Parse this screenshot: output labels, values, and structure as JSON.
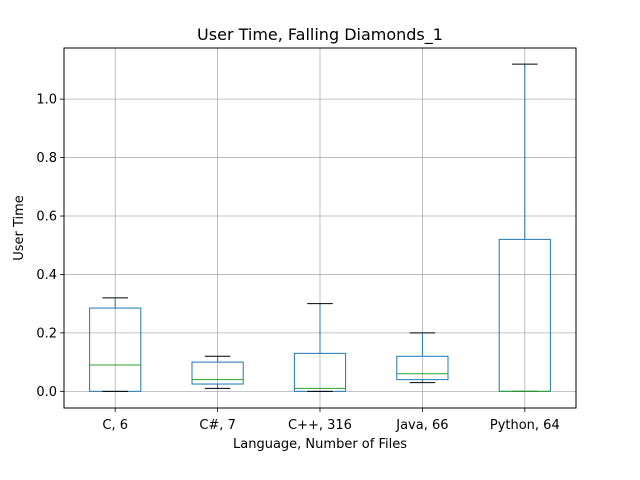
{
  "chart_data": {
    "type": "box",
    "title": "User Time, Falling Diamonds_1",
    "xlabel": "Language, Number of Files",
    "ylabel": "User Time",
    "ylim": [
      -0.057,
      1.175
    ],
    "yticks": [
      0.0,
      0.2,
      0.4,
      0.6,
      0.8,
      1.0
    ],
    "ytick_labels": [
      "0.0",
      "0.2",
      "0.4",
      "0.6",
      "0.8",
      "1.0"
    ],
    "grid": true,
    "categories": [
      "C, 6",
      "C#, 7",
      "C++, 316",
      "Java, 66",
      "Python, 64"
    ],
    "boxes": [
      {
        "label": "C, 6",
        "whisker_low": 0.0,
        "q1": 0.0,
        "median": 0.09,
        "q3": 0.285,
        "whisker_high": 0.32
      },
      {
        "label": "C#, 7",
        "whisker_low": 0.01,
        "q1": 0.025,
        "median": 0.04,
        "q3": 0.1,
        "whisker_high": 0.12
      },
      {
        "label": "C++, 316",
        "whisker_low": 0.0,
        "q1": 0.0,
        "median": 0.01,
        "q3": 0.13,
        "whisker_high": 0.3
      },
      {
        "label": "Java, 66",
        "whisker_low": 0.03,
        "q1": 0.04,
        "median": 0.06,
        "q3": 0.12,
        "whisker_high": 0.2
      },
      {
        "label": "Python, 64",
        "whisker_low": 0.0,
        "q1": 0.0,
        "median": 0.0,
        "q3": 0.52,
        "whisker_high": 1.12
      }
    ],
    "colors": {
      "box": "#1f77b4",
      "median": "#2ca02c",
      "cap": "#000000",
      "grid": "#b0b0b0",
      "axis": "#000000"
    }
  }
}
